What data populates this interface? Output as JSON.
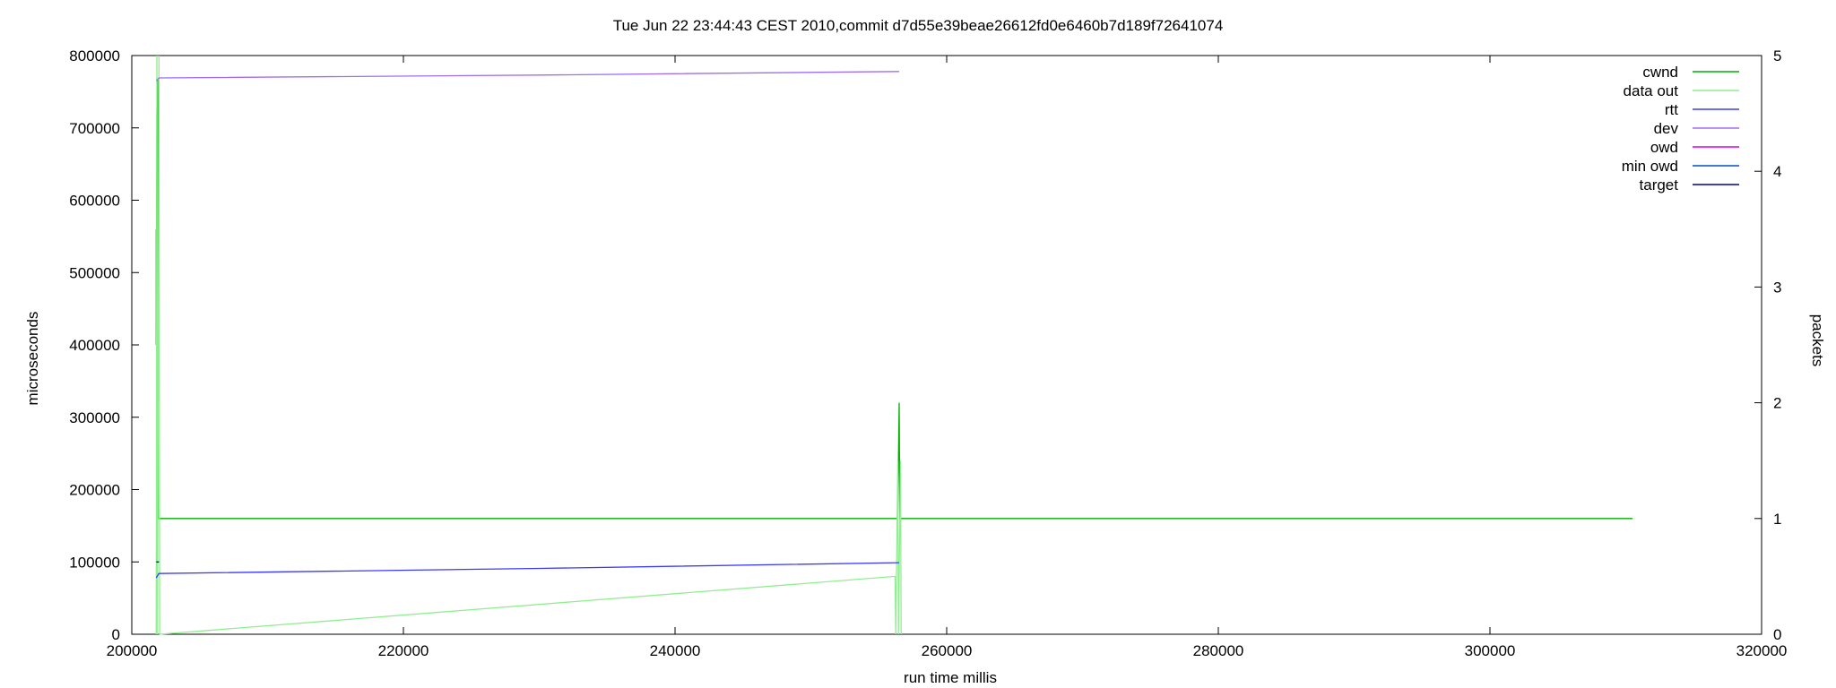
{
  "chart_data": {
    "type": "line",
    "title": "Tue Jun 22 23:44:43 CEST 2010,commit d7d55e39beae26612fd0e6460b7d189f72641074",
    "xlabel": "run time millis",
    "ylabel": "microseconds",
    "y2label": "packets",
    "xlim": [
      200000,
      320000
    ],
    "ylim": [
      0,
      800000
    ],
    "y2lim": [
      0,
      5
    ],
    "x_ticks": [
      200000,
      220000,
      240000,
      260000,
      280000,
      300000,
      320000
    ],
    "y_ticks": [
      0,
      100000,
      200000,
      300000,
      400000,
      500000,
      600000,
      700000,
      800000
    ],
    "y2_ticks": [
      0,
      1,
      2,
      3,
      4,
      5
    ],
    "grid": false,
    "legend_position": "top-right",
    "series": [
      {
        "name": "cwnd",
        "axis": "y2",
        "color": "#00b000",
        "points": [
          [
            201800,
            3.5
          ],
          [
            201800,
            2.5
          ],
          [
            201850,
            4.5
          ],
          [
            201900,
            4.8
          ],
          [
            201950,
            1.0
          ],
          [
            256400,
            1.0
          ],
          [
            256450,
            1.5
          ],
          [
            256500,
            2.0
          ],
          [
            256550,
            1.0
          ],
          [
            310500,
            1.0
          ]
        ]
      },
      {
        "name": "data out",
        "axis": "y2",
        "color": "#90ee90",
        "points": [
          [
            201800,
            0
          ],
          [
            201850,
            5
          ],
          [
            201900,
            0
          ],
          [
            202000,
            5
          ],
          [
            202050,
            0
          ],
          [
            256200,
            0.5
          ],
          [
            256250,
            0
          ],
          [
            256400,
            1.5
          ],
          [
            256450,
            0
          ],
          [
            256600,
            1.5
          ],
          [
            256650,
            0
          ]
        ]
      },
      {
        "name": "rtt",
        "axis": "y",
        "color": "#3a3aff",
        "points": [
          [
            201800,
            78000
          ],
          [
            202000,
            84000
          ],
          [
            230000,
            91000
          ],
          [
            256500,
            99000
          ]
        ]
      },
      {
        "name": "dev",
        "axis": "y",
        "color": "#a06ef0",
        "points": [
          [
            201800,
            765000
          ],
          [
            202000,
            769000
          ],
          [
            230000,
            773000
          ],
          [
            256500,
            778000
          ]
        ]
      },
      {
        "name": "owd",
        "axis": "y",
        "color": "#e000e0",
        "points": []
      },
      {
        "name": "min owd",
        "axis": "y",
        "color": "#0050c0",
        "points": []
      },
      {
        "name": "target",
        "axis": "y",
        "color": "#0000a0",
        "points": [
          [
            201800,
            100000
          ],
          [
            202000,
            100000
          ]
        ]
      }
    ]
  }
}
